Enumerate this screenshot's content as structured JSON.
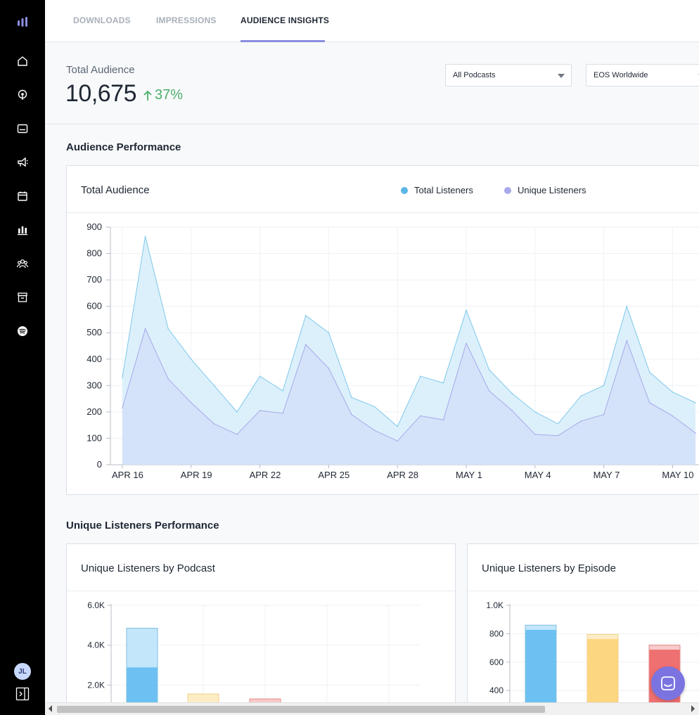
{
  "sidebar": {
    "icons": [
      "home-icon",
      "podcast-icon",
      "episodes-icon",
      "campaigns-icon",
      "calendar-icon",
      "analytics-icon",
      "audience-icon",
      "store-icon",
      "spotify-icon"
    ],
    "avatar_initials": "JL"
  },
  "tabs": [
    {
      "label": "DOWNLOADS",
      "active": false
    },
    {
      "label": "IMPRESSIONS",
      "active": false
    },
    {
      "label": "AUDIENCE INSIGHTS",
      "active": true
    }
  ],
  "summary": {
    "label": "Total Audience",
    "value": "10,675",
    "change": "37%",
    "filters": {
      "podcast": "All Podcasts",
      "region": "EOS Worldwide"
    }
  },
  "audience_performance": {
    "section_title": "Audience Performance",
    "card_title": "Total Audience",
    "legend": [
      {
        "label": "Total Listeners",
        "color": "#5bb6e8"
      },
      {
        "label": "Unique Listeners",
        "color": "#a8a8ea"
      }
    ]
  },
  "unique_performance": {
    "section_title": "Unique Listeners Performance",
    "by_podcast_title": "Unique Listeners by Podcast",
    "by_episode_title": "Unique Listeners by Episode"
  },
  "colors": {
    "accent": "#8b8fe0",
    "positive": "#4caf6a",
    "total_fill": "#dcf0fb",
    "unique_fill": "#d2e0f8"
  },
  "chart_data": [
    {
      "type": "area",
      "title": "Total Audience",
      "x_ticks": [
        "APR 16",
        "APR 19",
        "APR 22",
        "APR 25",
        "APR 28",
        "MAY 1",
        "MAY 4",
        "MAY 7",
        "MAY 10"
      ],
      "x": [
        "Apr 16",
        "Apr 17",
        "Apr 18",
        "Apr 19",
        "Apr 20",
        "Apr 21",
        "Apr 22",
        "Apr 23",
        "Apr 24",
        "Apr 25",
        "Apr 26",
        "Apr 27",
        "Apr 28",
        "Apr 29",
        "Apr 30",
        "May 1",
        "May 2",
        "May 3",
        "May 4",
        "May 5",
        "May 6",
        "May 7",
        "May 8",
        "May 9",
        "May 10",
        "May 11"
      ],
      "ylim": [
        0,
        900
      ],
      "y_ticks": [
        0,
        100,
        200,
        300,
        400,
        500,
        600,
        700,
        800,
        900
      ],
      "grid": true,
      "legend_placement": "top-center",
      "series": [
        {
          "name": "Total Listeners",
          "values": [
            330,
            865,
            515,
            400,
            300,
            200,
            335,
            280,
            565,
            500,
            255,
            220,
            145,
            335,
            310,
            585,
            360,
            270,
            200,
            155,
            260,
            300,
            600,
            350,
            275,
            235
          ]
        },
        {
          "name": "Unique Listeners",
          "values": [
            215,
            515,
            325,
            235,
            155,
            115,
            205,
            195,
            455,
            365,
            190,
            130,
            90,
            185,
            170,
            460,
            280,
            205,
            115,
            110,
            165,
            190,
            470,
            235,
            185,
            120
          ]
        }
      ]
    },
    {
      "type": "bar",
      "title": "Unique Listeners by Podcast",
      "y_ticks": [
        "2.0K",
        "4.0K",
        "6.0K"
      ],
      "ylim": [
        0,
        6000
      ],
      "grid": true,
      "series": [
        {
          "name": "",
          "values": [
            2900,
            800,
            600
          ],
          "colors": [
            "#6cc1f2",
            "#fdd680",
            "#ef7070"
          ]
        },
        {
          "name": "",
          "values": [
            1950,
            750,
            700
          ],
          "colors": [
            "#c3e6fb",
            "#fdedc4",
            "#f8caca"
          ]
        }
      ]
    },
    {
      "type": "bar",
      "title": "Unique Listeners by Episode",
      "y_ticks": [
        "200",
        "400",
        "600",
        "800",
        "1.0K"
      ],
      "ylim": [
        0,
        1000
      ],
      "grid": true,
      "series": [
        {
          "name": "",
          "values": [
            830,
            765,
            690
          ],
          "colors": [
            "#6cc1f2",
            "#fdd680",
            "#ef7070"
          ]
        },
        {
          "name": "",
          "values": [
            30,
            30,
            30
          ],
          "colors": [
            "#c3e6fb",
            "#fdedc4",
            "#f8caca"
          ]
        }
      ]
    }
  ]
}
